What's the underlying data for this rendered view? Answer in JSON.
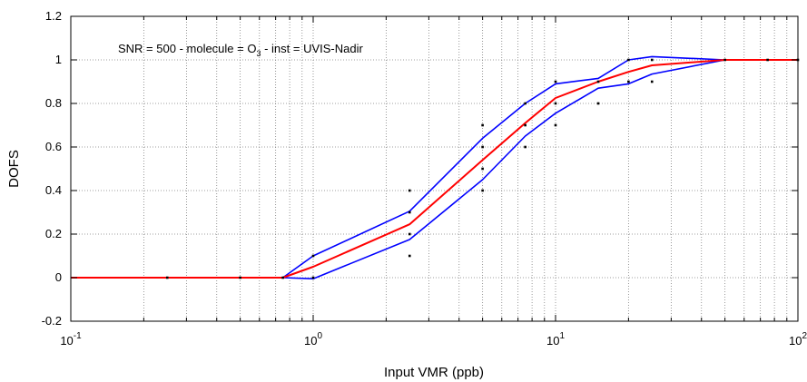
{
  "chart_data": {
    "type": "line",
    "title": "",
    "xlabel": "Input VMR (ppb)",
    "ylabel": "DOFS",
    "xscale": "log",
    "xlim": [
      0.1,
      100
    ],
    "ylim": [
      -0.2,
      1.2
    ],
    "x_ticks": [
      {
        "base": "10",
        "exp": "-1"
      },
      {
        "base": "10",
        "exp": "0"
      },
      {
        "base": "10",
        "exp": "1"
      },
      {
        "base": "10",
        "exp": "2"
      }
    ],
    "y_ticks": [
      "-0.2",
      "0",
      "0.2",
      "0.4",
      "0.6",
      "0.8",
      "1",
      "1.2"
    ],
    "grid": true,
    "annotation": {
      "before": "SNR = 500  -  molecule = O",
      "subscript": "3",
      "after": " -  inst = UVIS-Nadir"
    },
    "colors": {
      "mean": "#ff0000",
      "bounds": "#0000ff",
      "points": "#000000"
    },
    "series": [
      {
        "role": "mean",
        "x": [
          0.1,
          0.25,
          0.5,
          0.75,
          1,
          2.5,
          5,
          7.5,
          10,
          15,
          20,
          25,
          50,
          75,
          100
        ],
        "y": [
          0,
          0,
          0,
          0,
          0.05,
          0.245,
          0.54,
          0.71,
          0.825,
          0.9,
          0.945,
          0.975,
          1,
          1,
          1
        ]
      },
      {
        "role": "upper",
        "x": [
          0.1,
          0.25,
          0.5,
          0.75,
          1,
          2.5,
          5,
          7.5,
          10,
          15,
          20,
          25,
          50,
          75,
          100
        ],
        "y": [
          0,
          0,
          0,
          0,
          0.1,
          0.305,
          0.64,
          0.8,
          0.89,
          0.915,
          1.0,
          1.015,
          1,
          1,
          1
        ]
      },
      {
        "role": "lower",
        "x": [
          0.1,
          0.25,
          0.5,
          0.75,
          1,
          2.5,
          5,
          7.5,
          10,
          15,
          20,
          25,
          50,
          75,
          100
        ],
        "y": [
          0,
          0,
          0,
          0,
          -0.005,
          0.175,
          0.45,
          0.65,
          0.755,
          0.87,
          0.89,
          0.935,
          1,
          1,
          1
        ]
      }
    ],
    "points": [
      [
        0.25,
        0
      ],
      [
        0.5,
        0
      ],
      [
        0.75,
        0
      ],
      [
        1,
        0
      ],
      [
        1,
        0.1
      ],
      [
        2.5,
        0.1
      ],
      [
        2.5,
        0.2
      ],
      [
        2.5,
        0.3
      ],
      [
        2.5,
        0.4
      ],
      [
        5,
        0.4
      ],
      [
        5,
        0.5
      ],
      [
        5,
        0.6
      ],
      [
        5,
        0.7
      ],
      [
        7.5,
        0.6
      ],
      [
        7.5,
        0.7
      ],
      [
        7.5,
        0.8
      ],
      [
        10,
        0.7
      ],
      [
        10,
        0.8
      ],
      [
        10,
        0.9
      ],
      [
        15,
        0.8
      ],
      [
        15,
        0.9
      ],
      [
        20,
        0.9
      ],
      [
        20,
        1
      ],
      [
        25,
        0.9
      ],
      [
        25,
        1
      ],
      [
        50,
        1
      ],
      [
        75,
        1
      ],
      [
        100,
        1
      ]
    ]
  }
}
